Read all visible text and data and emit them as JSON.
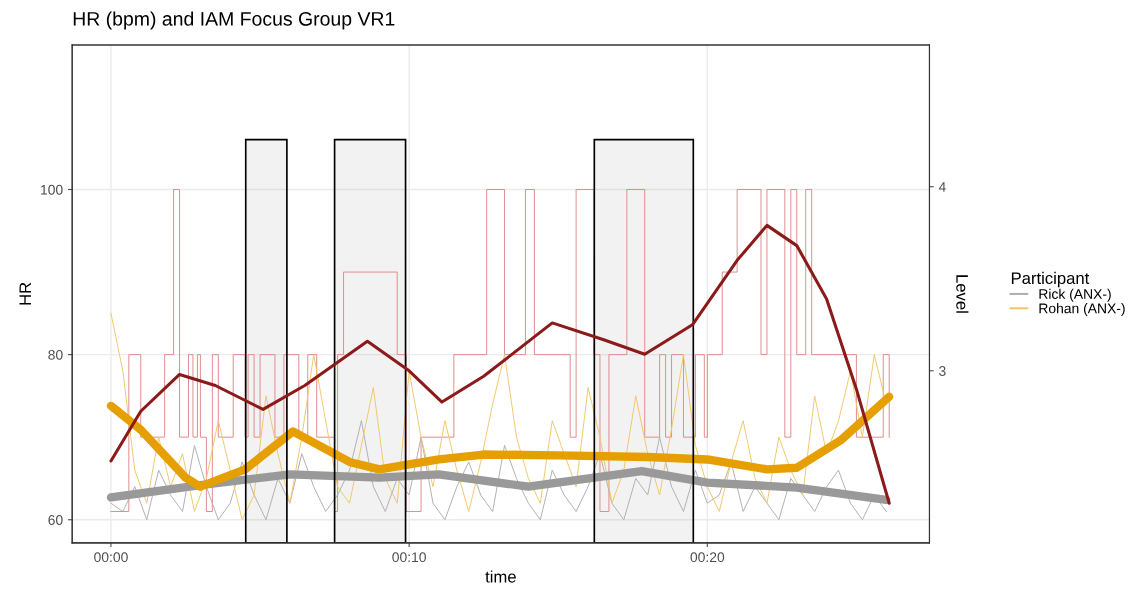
{
  "chart_data": {
    "type": "line",
    "title": "HR (bpm) and IAM Focus Group VR1",
    "xlabel": "time",
    "ylabel": "HR",
    "y2label": "Level",
    "legend_title": "Participant",
    "xlim": [
      -1.3,
      27.45
    ],
    "xticks": [
      {
        "value": 0,
        "label": "00:00"
      },
      {
        "value": 10,
        "label": "00:10"
      },
      {
        "value": 20,
        "label": "00:20"
      }
    ],
    "ylim": [
      57.2,
      117.5
    ],
    "yticks": [
      60,
      80,
      100
    ],
    "y2lim": [
      2.065,
      4.77
    ],
    "y2ticks": [
      3,
      4
    ],
    "grid": true,
    "legend": "right",
    "bands": [
      {
        "axis": "x",
        "from": 4.52,
        "to": 5.9,
        "color": "#000000"
      },
      {
        "axis": "x",
        "from": 7.5,
        "to": 9.88,
        "color": "#000000"
      },
      {
        "axis": "x",
        "from": 16.21,
        "to": 19.53,
        "color": "#000000"
      }
    ],
    "series": [
      {
        "type": "step",
        "color": "#e08a8a",
        "x": [
          0,
          0.6,
          1.0,
          1.8,
          2.1,
          2.3,
          2.6,
          2.75,
          2.9,
          3.0,
          3.2,
          3.4,
          3.6,
          4.1,
          4.5,
          4.6,
          4.8,
          5.0,
          5.5,
          5.8,
          6.3,
          6.6,
          6.9,
          7.5,
          7.6,
          7.8,
          9.6,
          9.9,
          10.4,
          11.5,
          12.6,
          13.2,
          13.9,
          14.2,
          15.4,
          15.6,
          16.2,
          16.4,
          16.7,
          17.3,
          17.9,
          18.4,
          18.6,
          18.8,
          19.2,
          19.6,
          19.9,
          20.0,
          20.5,
          21.0,
          21.8,
          22.0,
          22.6,
          22.8,
          23.0,
          23.3,
          23.5,
          25.0,
          25.9,
          26.1
        ],
        "values": [
          61,
          80,
          70,
          80,
          100,
          70,
          80,
          70,
          80,
          70,
          61,
          80,
          70,
          80,
          70,
          80,
          70,
          80,
          70,
          80,
          70,
          80,
          70,
          61,
          80,
          90,
          80,
          61,
          70,
          80,
          100,
          80,
          100,
          80,
          70,
          100,
          80,
          61,
          80,
          100,
          70,
          80,
          70,
          80,
          70,
          80,
          70,
          80,
          90,
          100,
          80,
          100,
          70,
          100,
          80,
          100,
          80,
          70,
          80,
          70
        ]
      },
      {
        "name": "Rick (ANX-)",
        "color": "#b0b0b0",
        "x": [
          0,
          0.4,
          0.8,
          1.2,
          1.6,
          2.0,
          2.4,
          2.8,
          3.2,
          3.6,
          4.0,
          4.4,
          4.8,
          5.2,
          5.6,
          6.0,
          6.4,
          6.8,
          7.2,
          7.6,
          8.0,
          8.4,
          8.8,
          9.2,
          9.6,
          10.0,
          10.4,
          10.8,
          11.2,
          11.6,
          12.0,
          12.4,
          12.8,
          13.2,
          13.6,
          14.0,
          14.4,
          14.8,
          15.2,
          15.6,
          16.0,
          16.4,
          16.8,
          17.2,
          17.6,
          18.0,
          18.4,
          18.8,
          19.2,
          19.6,
          20.0,
          20.4,
          20.8,
          21.2,
          21.6,
          22.0,
          22.4,
          22.8,
          23.2,
          23.6,
          24.0,
          24.4,
          24.8,
          25.2,
          25.6,
          26.0
        ],
        "values": [
          62,
          61,
          64,
          60,
          66,
          63,
          61,
          69,
          64,
          60,
          62,
          67,
          63,
          60,
          65,
          62,
          68,
          64,
          61,
          63,
          66,
          72,
          64,
          61,
          65,
          63,
          70,
          62,
          60,
          64,
          67,
          63,
          61,
          69,
          65,
          62,
          60,
          66,
          63,
          61,
          64,
          68,
          62,
          60,
          65,
          63,
          70,
          64,
          61,
          66,
          62,
          63,
          67,
          61,
          64,
          62,
          60,
          65,
          63,
          61,
          64,
          66,
          62,
          60,
          63,
          61
        ]
      },
      {
        "name": "Rohan (ANX-)",
        "color": "#f2c66a",
        "x": [
          0,
          0.4,
          0.8,
          1.2,
          1.6,
          2.0,
          2.4,
          2.8,
          3.2,
          3.6,
          4.0,
          4.4,
          4.8,
          5.2,
          5.6,
          6.0,
          6.4,
          6.8,
          7.2,
          7.6,
          8.0,
          8.4,
          8.8,
          9.2,
          9.6,
          10.0,
          10.4,
          10.8,
          11.2,
          11.6,
          12.0,
          12.4,
          12.8,
          13.2,
          13.6,
          14.0,
          14.4,
          14.8,
          15.2,
          15.6,
          16.0,
          16.4,
          16.8,
          17.2,
          17.6,
          18.0,
          18.4,
          18.8,
          19.2,
          19.6,
          20.0,
          20.4,
          20.8,
          21.2,
          21.6,
          22.0,
          22.4,
          22.8,
          23.2,
          23.6,
          24.0,
          24.4,
          24.8,
          25.2,
          25.6,
          26.0
        ],
        "values": [
          85,
          78,
          66,
          62,
          70,
          64,
          68,
          61,
          65,
          72,
          66,
          60,
          63,
          75,
          68,
          62,
          70,
          80,
          72,
          64,
          62,
          69,
          76,
          65,
          62,
          78,
          70,
          64,
          72,
          66,
          61,
          67,
          74,
          80,
          70,
          65,
          62,
          72,
          68,
          64,
          76,
          70,
          62,
          66,
          75,
          68,
          63,
          71,
          80,
          69,
          64,
          61,
          67,
          72,
          65,
          62,
          70,
          66,
          63,
          75,
          68,
          72,
          78,
          70,
          80,
          74
        ]
      },
      {
        "color": "#999999",
        "x": [
          0,
          3,
          6,
          9,
          11,
          14,
          17.8,
          20,
          23,
          26
        ],
        "values": [
          62.7,
          64.2,
          65.5,
          65.1,
          65.5,
          64.0,
          65.9,
          64.5,
          63.9,
          62.4
        ]
      },
      {
        "color": "#e69f00",
        "x": [
          0,
          1,
          2.5,
          3,
          4.5,
          6.1,
          8,
          9,
          11,
          12.5,
          15,
          18,
          20,
          22,
          23,
          24.5,
          26.1
        ],
        "values": [
          73.8,
          70.9,
          65.1,
          64.0,
          66.1,
          70.7,
          67.0,
          66.1,
          67.3,
          67.9,
          67.8,
          67.6,
          67.3,
          66.1,
          66.3,
          69.7,
          74.9
        ]
      },
      {
        "color": "#8b1a1a",
        "axis": "y2",
        "x": [
          0,
          1,
          2.3,
          3.5,
          5.1,
          6.5,
          8.6,
          10,
          11.1,
          12.5,
          14.8,
          16.5,
          17.9,
          19.5,
          21,
          22,
          23,
          24,
          25,
          26.1
        ],
        "values": [
          2.51,
          2.78,
          2.98,
          2.92,
          2.79,
          2.92,
          3.16,
          3.0,
          2.83,
          2.97,
          3.26,
          3.17,
          3.09,
          3.25,
          3.6,
          3.79,
          3.68,
          3.39,
          2.9,
          2.28
        ]
      }
    ]
  }
}
